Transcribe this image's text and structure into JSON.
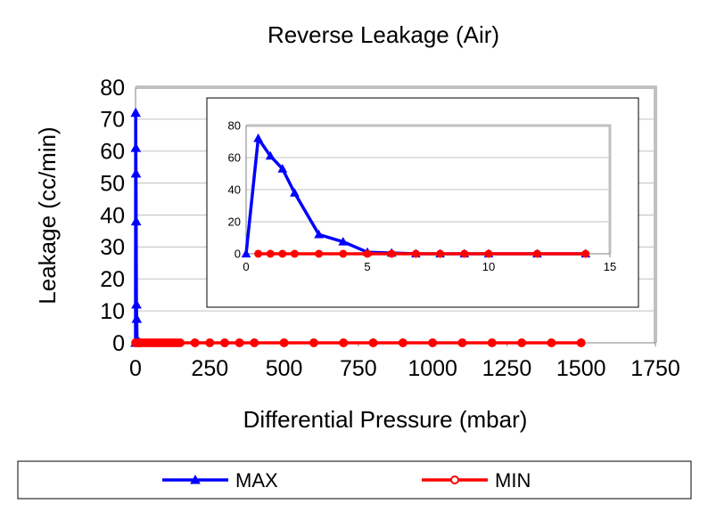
{
  "chart_data": [
    {
      "type": "line",
      "title": "Reverse Leakage (Air)",
      "xlabel": "Differential Pressure (mbar)",
      "ylabel": "Leakage (cc/min)",
      "xlim": [
        0,
        1750
      ],
      "ylim": [
        0,
        80
      ],
      "xticks": [
        0,
        250,
        500,
        750,
        1000,
        1250,
        1500,
        1750
      ],
      "yticks": [
        0,
        10,
        20,
        30,
        40,
        50,
        60,
        70,
        80
      ],
      "grid": true,
      "legend": "bottom",
      "series": [
        {
          "name": "MAX",
          "color": "#0000ff",
          "marker": "triangle",
          "x": [
            0,
            0.5,
            1,
            1.5,
            2,
            3,
            4,
            5,
            6,
            7,
            8,
            9,
            10,
            12,
            14
          ],
          "y": [
            0,
            72,
            61,
            53,
            38,
            12,
            7.5,
            1,
            0.5,
            0,
            0,
            0,
            0,
            0,
            0
          ]
        },
        {
          "name": "MIN",
          "color": "#ff0000",
          "marker": "circle",
          "x": [
            0.5,
            1,
            1.5,
            2,
            3,
            4,
            5,
            6,
            7,
            8,
            9,
            10,
            12,
            14,
            20,
            30,
            40,
            50,
            60,
            70,
            80,
            90,
            100,
            110,
            120,
            130,
            140,
            150,
            200,
            250,
            300,
            350,
            400,
            500,
            600,
            700,
            800,
            900,
            1000,
            1100,
            1200,
            1300,
            1400,
            1500
          ],
          "y": [
            0,
            0,
            0,
            0,
            0,
            0,
            0,
            0,
            0,
            0,
            0,
            0,
            0,
            0,
            0,
            0,
            0,
            0,
            0,
            0,
            0,
            0,
            0,
            0,
            0,
            0,
            0,
            0,
            0,
            0,
            0,
            0,
            0,
            0,
            0,
            0,
            0,
            0,
            0,
            0,
            0,
            0,
            0,
            0
          ]
        }
      ]
    },
    {
      "type": "line",
      "title": "",
      "xlim": [
        0,
        15
      ],
      "ylim": [
        0,
        80
      ],
      "xticks": [
        0,
        5,
        10,
        15
      ],
      "yticks": [
        0,
        20,
        40,
        60,
        80
      ],
      "grid": true,
      "note": "inset zoom of low-pressure region",
      "series": [
        {
          "name": "MAX",
          "color": "#0000ff",
          "marker": "triangle",
          "x": [
            0,
            0.5,
            1,
            1.5,
            2,
            3,
            4,
            5,
            6,
            7,
            8,
            9,
            10,
            12,
            14
          ],
          "y": [
            0,
            72,
            61,
            53,
            38,
            12,
            7.5,
            1,
            0.5,
            0,
            0,
            0,
            0,
            0,
            0
          ]
        },
        {
          "name": "MIN",
          "color": "#ff0000",
          "marker": "circle",
          "x": [
            0.5,
            1,
            1.5,
            2,
            3,
            4,
            5,
            6,
            7,
            8,
            9,
            10,
            12,
            14
          ],
          "y": [
            0,
            0,
            0,
            0,
            0,
            0,
            0,
            0,
            0,
            0,
            0,
            0,
            0,
            0
          ]
        }
      ]
    }
  ]
}
